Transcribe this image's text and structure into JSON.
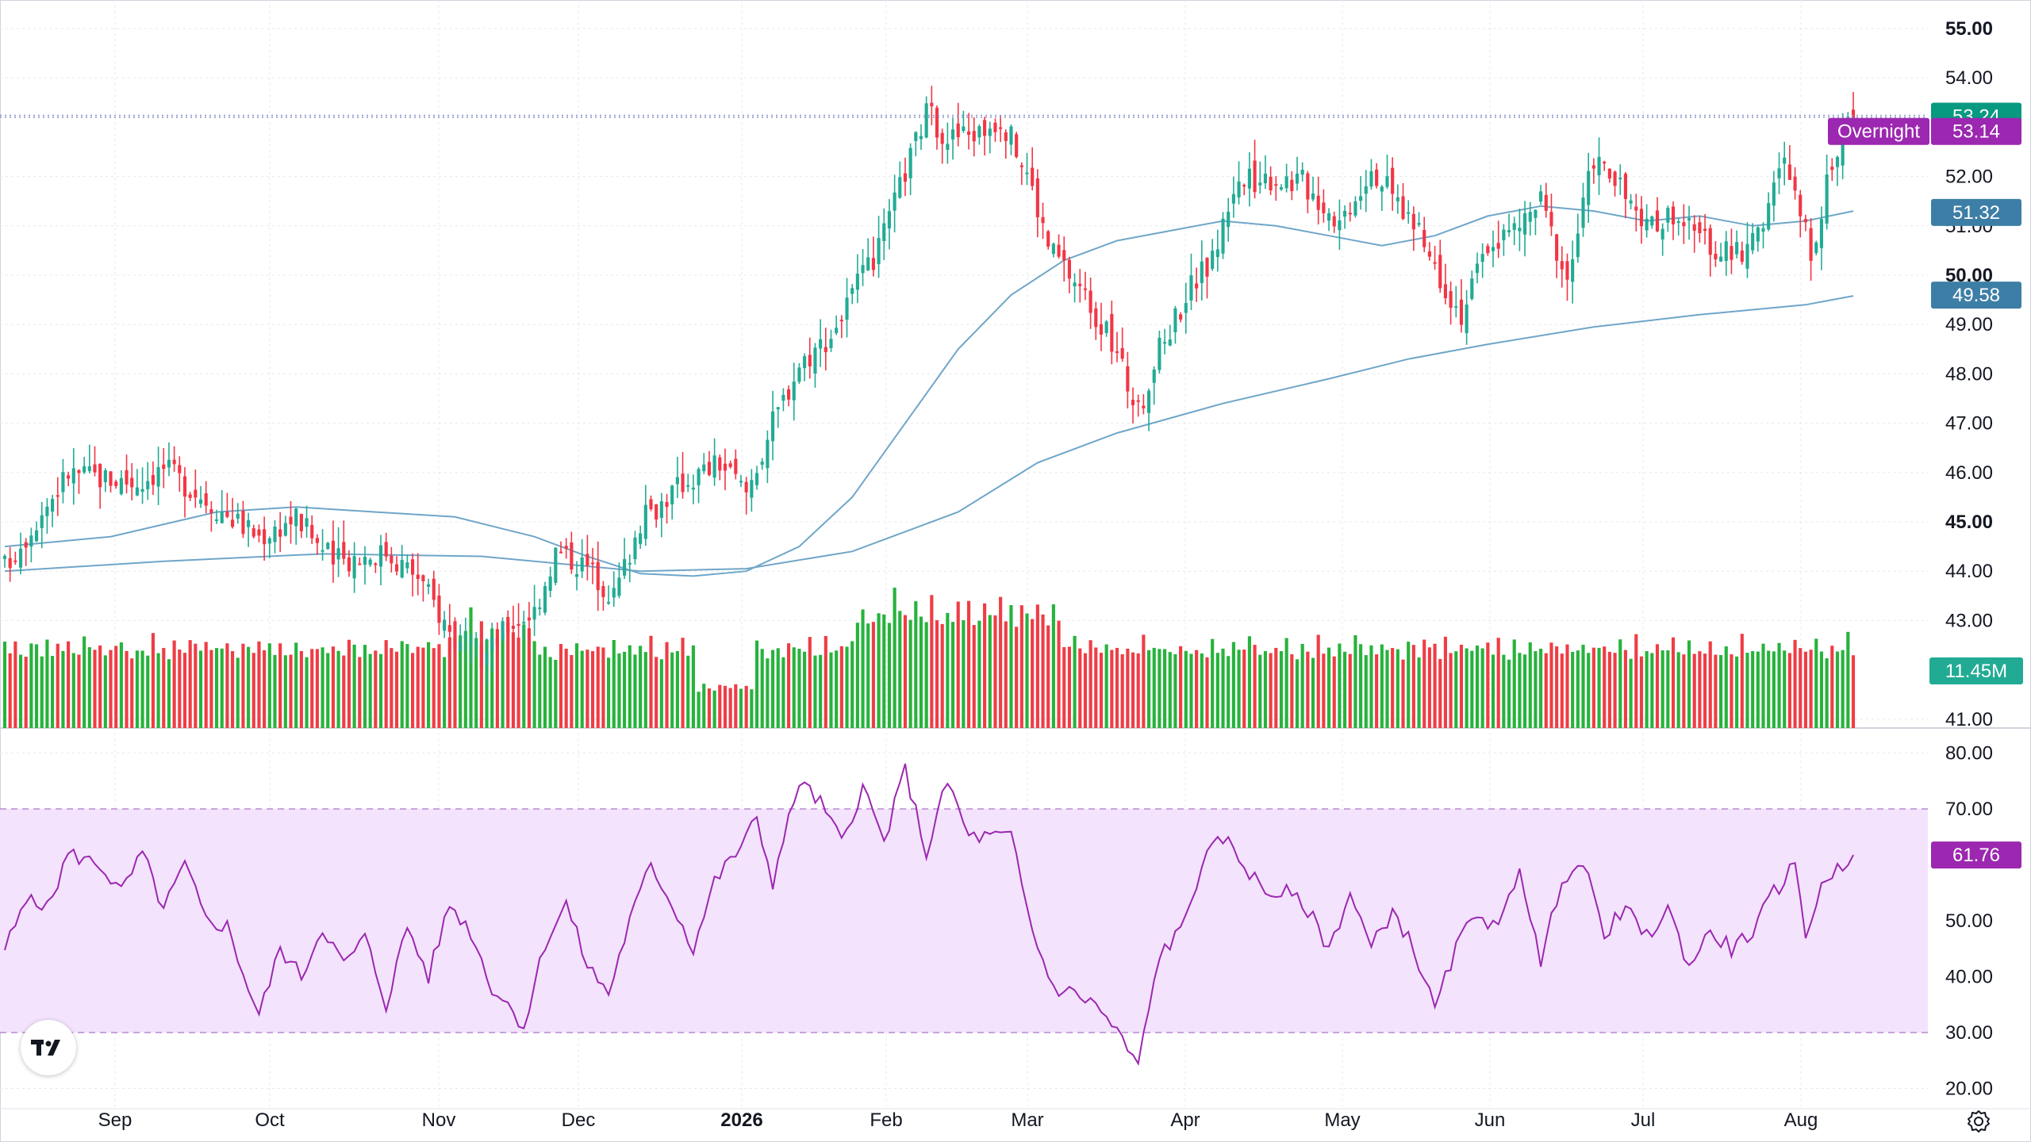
{
  "chart_data": [
    {
      "type": "candlestick",
      "price_axis": {
        "ticks": [
          "55.00",
          "54.00",
          "52.00",
          "51.00",
          "50.00",
          "49.00",
          "48.00",
          "47.00",
          "46.00",
          "45.00",
          "44.00",
          "43.00",
          "41.00"
        ],
        "bold_ticks": [
          "55.00",
          "50.00",
          "45.00"
        ],
        "ylim": [
          40.8,
          55.6
        ]
      },
      "time_axis": {
        "ticks": [
          "Sep",
          "Oct",
          "Nov",
          "Dec",
          "2026",
          "Feb",
          "Mar",
          "Apr",
          "May",
          "Jun",
          "Jul",
          "Aug"
        ],
        "bold_ticks": [
          "2026"
        ]
      },
      "moving_averages": [
        {
          "points": [
            [
              0,
              44.5
            ],
            [
              20,
              44.7
            ],
            [
              40,
              45.2
            ],
            [
              55,
              45.3
            ],
            [
              70,
              45.2
            ],
            [
              85,
              45.1
            ],
            [
              100,
              44.7
            ],
            [
              110,
              44.3
            ],
            [
              120,
              43.95
            ],
            [
              130,
              43.9
            ],
            [
              140,
              44.0
            ],
            [
              150,
              44.5
            ],
            [
              160,
              45.5
            ],
            [
              170,
              47.0
            ],
            [
              180,
              48.5
            ],
            [
              190,
              49.6
            ],
            [
              200,
              50.3
            ],
            [
              210,
              50.7
            ],
            [
              220,
              50.9
            ],
            [
              230,
              51.1
            ],
            [
              240,
              51.0
            ],
            [
              250,
              50.8
            ],
            [
              260,
              50.6
            ],
            [
              270,
              50.8
            ],
            [
              280,
              51.2
            ],
            [
              290,
              51.4
            ],
            [
              300,
              51.3
            ],
            [
              310,
              51.1
            ],
            [
              320,
              51.2
            ],
            [
              330,
              51.0
            ],
            [
              340,
              51.1
            ],
            [
              349,
              51.3
            ]
          ]
        },
        {
          "points": [
            [
              0,
              44.0
            ],
            [
              30,
              44.2
            ],
            [
              60,
              44.35
            ],
            [
              90,
              44.3
            ],
            [
              120,
              44.0
            ],
            [
              140,
              44.05
            ],
            [
              160,
              44.4
            ],
            [
              180,
              45.2
            ],
            [
              195,
              46.2
            ],
            [
              210,
              46.8
            ],
            [
              230,
              47.4
            ],
            [
              250,
              47.9
            ],
            [
              265,
              48.3
            ],
            [
              280,
              48.6
            ],
            [
              300,
              48.95
            ],
            [
              320,
              49.2
            ],
            [
              340,
              49.4
            ],
            [
              349,
              49.58
            ]
          ]
        }
      ],
      "candle_keyframes": [
        [
          0,
          44.1
        ],
        [
          12,
          46.0
        ],
        [
          25,
          45.8
        ],
        [
          30,
          46.1
        ],
        [
          40,
          45.3
        ],
        [
          48,
          44.7
        ],
        [
          55,
          45.1
        ],
        [
          62,
          44.2
        ],
        [
          72,
          44.4
        ],
        [
          78,
          43.9
        ],
        [
          85,
          42.6
        ],
        [
          90,
          42.2
        ],
        [
          95,
          42.9
        ],
        [
          100,
          43.2
        ],
        [
          104,
          44.4
        ],
        [
          110,
          44.1
        ],
        [
          115,
          43.5
        ],
        [
          120,
          45.0
        ],
        [
          128,
          45.8
        ],
        [
          135,
          46.2
        ],
        [
          140,
          45.6
        ],
        [
          145,
          47.0
        ],
        [
          150,
          48.2
        ],
        [
          156,
          48.8
        ],
        [
          160,
          49.6
        ],
        [
          165,
          50.5
        ],
        [
          170,
          52.1
        ],
        [
          174,
          53.3
        ],
        [
          178,
          52.8
        ],
        [
          184,
          52.9
        ],
        [
          188,
          53.2
        ],
        [
          193,
          52.1
        ],
        [
          197,
          50.6
        ],
        [
          204,
          49.6
        ],
        [
          210,
          48.4
        ],
        [
          214,
          47.2
        ],
        [
          218,
          48.5
        ],
        [
          224,
          49.8
        ],
        [
          228,
          50.3
        ],
        [
          232,
          51.8
        ],
        [
          238,
          52.0
        ],
        [
          245,
          51.9
        ],
        [
          252,
          51.1
        ],
        [
          258,
          52.2
        ],
        [
          265,
          51.2
        ],
        [
          270,
          50.2
        ],
        [
          275,
          49.2
        ],
        [
          280,
          50.6
        ],
        [
          286,
          51.0
        ],
        [
          290,
          51.5
        ],
        [
          295,
          49.9
        ],
        [
          300,
          52.4
        ],
        [
          304,
          51.9
        ],
        [
          310,
          50.9
        ],
        [
          315,
          51.3
        ],
        [
          320,
          50.7
        ],
        [
          326,
          50.4
        ],
        [
          330,
          50.6
        ],
        [
          336,
          52.3
        ],
        [
          341,
          50.5
        ],
        [
          344,
          51.8
        ],
        [
          347,
          53.0
        ],
        [
          349,
          53.24
        ]
      ],
      "volume_pattern": [
        1.05,
        0.92,
        1.2,
        0.85,
        0.75,
        1.1,
        0.95,
        0.8,
        1.3,
        0.88,
        1.0,
        0.78,
        1.15,
        0.9,
        0.82,
        1.25,
        0.97,
        0.86,
        1.08,
        0.93
      ],
      "rsi_axis": {
        "ticks": [
          "80.00",
          "70.00",
          "50.00",
          "40.00",
          "30.00",
          "20.00"
        ],
        "overbought": 70,
        "oversold": 30,
        "ylim": [
          18,
          82
        ]
      },
      "rsi_keyframes": [
        [
          0,
          45
        ],
        [
          5,
          55
        ],
        [
          8,
          52
        ],
        [
          12,
          62
        ],
        [
          18,
          60
        ],
        [
          22,
          55
        ],
        [
          26,
          62
        ],
        [
          30,
          52
        ],
        [
          34,
          60
        ],
        [
          38,
          50
        ],
        [
          42,
          49
        ],
        [
          46,
          38
        ],
        [
          48,
          33
        ],
        [
          52,
          45
        ],
        [
          56,
          40
        ],
        [
          60,
          49
        ],
        [
          64,
          42
        ],
        [
          68,
          47
        ],
        [
          72,
          35
        ],
        [
          76,
          49
        ],
        [
          80,
          40
        ],
        [
          84,
          53
        ],
        [
          88,
          48
        ],
        [
          92,
          38
        ],
        [
          96,
          34
        ],
        [
          98,
          31
        ],
        [
          102,
          46
        ],
        [
          106,
          53
        ],
        [
          110,
          42
        ],
        [
          114,
          37
        ],
        [
          118,
          50
        ],
        [
          122,
          60
        ],
        [
          126,
          53
        ],
        [
          130,
          45
        ],
        [
          134,
          57
        ],
        [
          138,
          62
        ],
        [
          142,
          68
        ],
        [
          145,
          57
        ],
        [
          150,
          75
        ],
        [
          154,
          71
        ],
        [
          158,
          64
        ],
        [
          162,
          74
        ],
        [
          166,
          64
        ],
        [
          170,
          77
        ],
        [
          174,
          62
        ],
        [
          178,
          75
        ],
        [
          182,
          65
        ],
        [
          186,
          65
        ],
        [
          190,
          65
        ],
        [
          194,
          48
        ],
        [
          198,
          38
        ],
        [
          202,
          37
        ],
        [
          206,
          35
        ],
        [
          210,
          30
        ],
        [
          214,
          24
        ],
        [
          218,
          44
        ],
        [
          222,
          48
        ],
        [
          226,
          60
        ],
        [
          230,
          65
        ],
        [
          234,
          60
        ],
        [
          238,
          55
        ],
        [
          242,
          55
        ],
        [
          246,
          52
        ],
        [
          250,
          45
        ],
        [
          254,
          55
        ],
        [
          258,
          45
        ],
        [
          262,
          52
        ],
        [
          266,
          45
        ],
        [
          270,
          34
        ],
        [
          274,
          45
        ],
        [
          278,
          52
        ],
        [
          282,
          48
        ],
        [
          286,
          60
        ],
        [
          290,
          42
        ],
        [
          294,
          58
        ],
        [
          298,
          60
        ],
        [
          302,
          48
        ],
        [
          306,
          52
        ],
        [
          310,
          47
        ],
        [
          314,
          52
        ],
        [
          318,
          42
        ],
        [
          322,
          48
        ],
        [
          326,
          45
        ],
        [
          330,
          48
        ],
        [
          334,
          55
        ],
        [
          338,
          60
        ],
        [
          340,
          48
        ],
        [
          344,
          58
        ],
        [
          349,
          61.76
        ]
      ]
    }
  ],
  "tags": {
    "last_price": {
      "label": "53.24",
      "value": 53.24,
      "color": "#089981"
    },
    "overnight": {
      "label": "Overnight",
      "value_label": "53.14",
      "value": 53.14,
      "color": "#9c27b0"
    },
    "ma_short": {
      "label": "51.32",
      "value": 51.32,
      "color": "#3d7ea6"
    },
    "ma_long": {
      "label": "49.58",
      "value": 49.58,
      "color": "#3d7ea6"
    },
    "volume": {
      "label": "11.45M",
      "color": "#22ab94"
    },
    "rsi": {
      "label": "61.76",
      "value": 61.76,
      "color": "#9c27b0"
    }
  },
  "colors": {
    "up": "#22ab94",
    "down": "#f23645",
    "volume_up": "#26b33c",
    "volume_down": "#ef3d45",
    "ma_line": "#6fa6c8",
    "rsi_line": "#9c27b0",
    "rsi_band": "#f3e3fd",
    "grid": "#e6e8ec"
  },
  "icons": {
    "logo": "tradingview-logo-icon",
    "settings": "settings-gear-icon"
  }
}
